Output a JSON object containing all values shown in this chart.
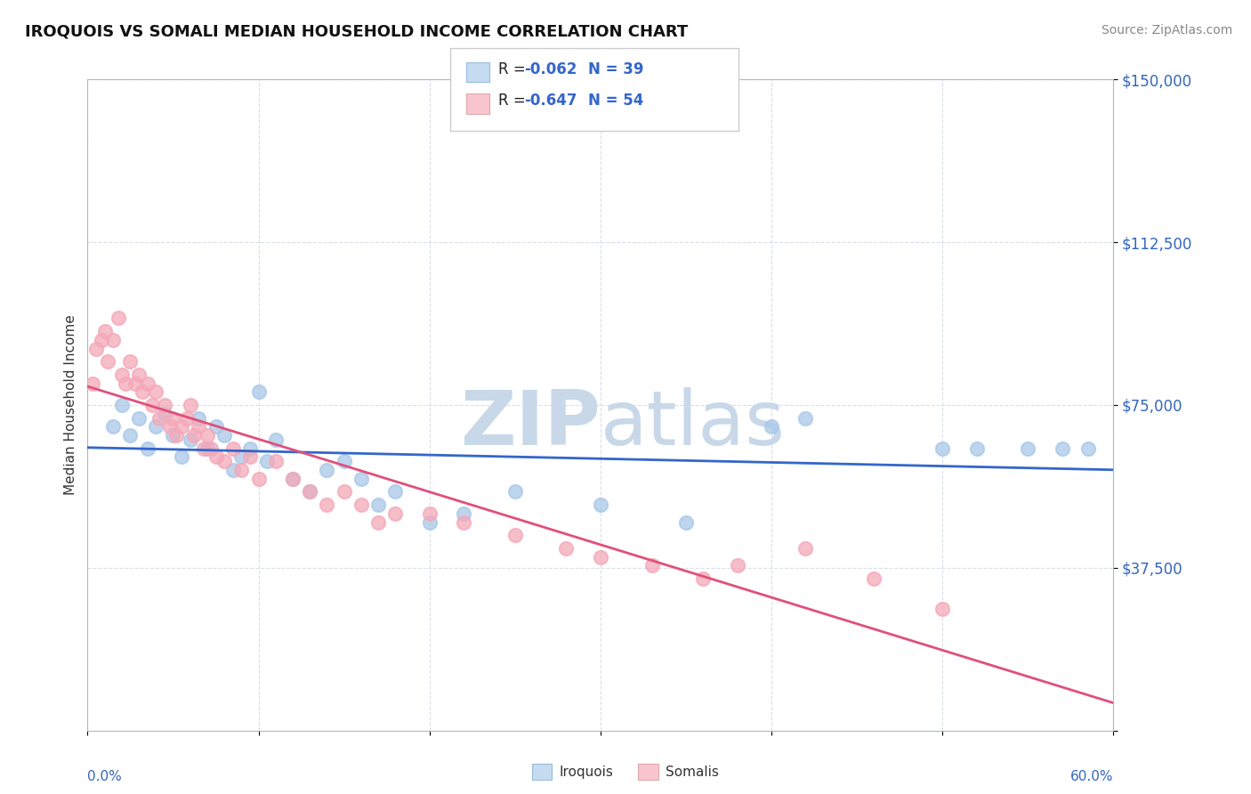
{
  "title": "IROQUOIS VS SOMALI MEDIAN HOUSEHOLD INCOME CORRELATION CHART",
  "source": "Source: ZipAtlas.com",
  "ylabel": "Median Household Income",
  "y_ticks": [
    0,
    37500,
    75000,
    112500,
    150000
  ],
  "y_tick_labels": [
    "",
    "$37,500",
    "$75,000",
    "$112,500",
    "$150,000"
  ],
  "xmin": 0.0,
  "xmax": 60.0,
  "ymin": 0,
  "ymax": 150000,
  "iroquois_dot_color": "#a8c8e8",
  "somali_dot_color": "#f4a8b8",
  "iroquois_line_color": "#3366cc",
  "somali_line_color": "#e0507a",
  "legend_box_iq": "#c5dcf0",
  "legend_box_so": "#f9c5cf",
  "R_iroquois": -0.062,
  "N_iroquois": 39,
  "R_somali": -0.647,
  "N_somali": 54,
  "watermark_text": "ZIP atlas",
  "watermark_color": "#c8d8e8",
  "iroquois_x": [
    1.5,
    2.0,
    2.5,
    3.0,
    3.5,
    4.0,
    4.5,
    5.0,
    5.5,
    6.0,
    6.5,
    7.0,
    7.5,
    8.0,
    8.5,
    9.0,
    9.5,
    10.0,
    10.5,
    11.0,
    12.0,
    13.0,
    14.0,
    15.0,
    16.0,
    17.0,
    18.0,
    20.0,
    22.0,
    25.0,
    30.0,
    35.0,
    40.0,
    42.0,
    50.0,
    52.0,
    55.0,
    57.0,
    58.5
  ],
  "iroquois_y": [
    70000,
    75000,
    68000,
    72000,
    65000,
    70000,
    73000,
    68000,
    63000,
    67000,
    72000,
    65000,
    70000,
    68000,
    60000,
    63000,
    65000,
    78000,
    62000,
    67000,
    58000,
    55000,
    60000,
    62000,
    58000,
    52000,
    55000,
    48000,
    50000,
    55000,
    52000,
    48000,
    70000,
    72000,
    65000,
    65000,
    65000,
    65000,
    65000
  ],
  "somali_x": [
    0.3,
    0.5,
    0.8,
    1.0,
    1.2,
    1.5,
    1.8,
    2.0,
    2.2,
    2.5,
    2.8,
    3.0,
    3.2,
    3.5,
    3.8,
    4.0,
    4.2,
    4.5,
    4.8,
    5.0,
    5.2,
    5.5,
    5.8,
    6.0,
    6.2,
    6.5,
    6.8,
    7.0,
    7.2,
    7.5,
    8.0,
    8.5,
    9.0,
    9.5,
    10.0,
    11.0,
    12.0,
    13.0,
    14.0,
    15.0,
    16.0,
    17.0,
    18.0,
    20.0,
    22.0,
    25.0,
    28.0,
    30.0,
    33.0,
    36.0,
    38.0,
    42.0,
    46.0,
    50.0
  ],
  "somali_y": [
    80000,
    88000,
    90000,
    92000,
    85000,
    90000,
    95000,
    82000,
    80000,
    85000,
    80000,
    82000,
    78000,
    80000,
    75000,
    78000,
    72000,
    75000,
    70000,
    72000,
    68000,
    70000,
    72000,
    75000,
    68000,
    70000,
    65000,
    68000,
    65000,
    63000,
    62000,
    65000,
    60000,
    63000,
    58000,
    62000,
    58000,
    55000,
    52000,
    55000,
    52000,
    48000,
    50000,
    50000,
    48000,
    45000,
    42000,
    40000,
    38000,
    35000,
    38000,
    42000,
    35000,
    28000
  ]
}
